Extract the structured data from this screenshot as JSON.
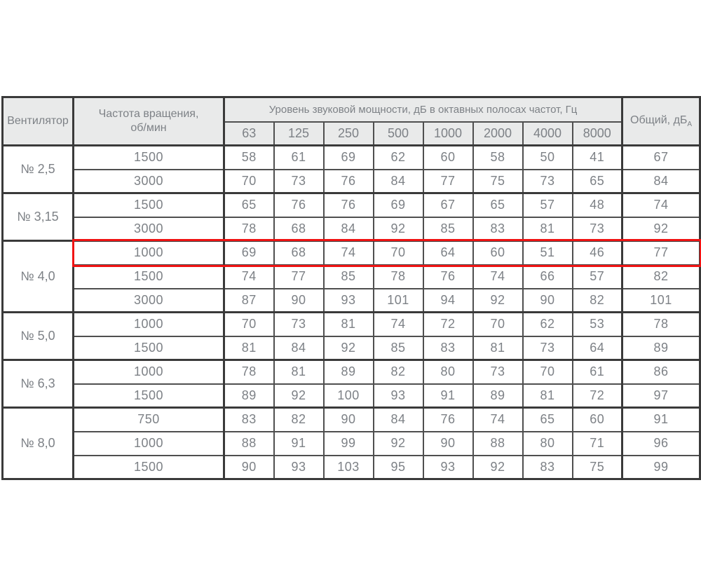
{
  "colors": {
    "highlight_red": "#f01414",
    "header_bg": "#e9eaea",
    "text": "#7d8186",
    "border_major": "#3a3a3a",
    "border_minor": "#4f4f4f"
  },
  "table": {
    "corner_header": "Вентилятор",
    "rpm_header_line1": "Частота вращения,",
    "rpm_header_line2": "об/мин",
    "band_header": "Уровень звуковой мощности, дБ в октавных полосах частот, Гц",
    "freq_columns": [
      "63",
      "125",
      "250",
      "500",
      "1000",
      "2000",
      "4000",
      "8000"
    ],
    "total_header": "Общий, дБ",
    "total_header_subscript": "А",
    "groups": [
      {
        "fan": "№ 2,5",
        "rows": [
          {
            "rpm": "1500",
            "levels": [
              58,
              61,
              69,
              62,
              60,
              58,
              50,
              41
            ],
            "total": 67
          },
          {
            "rpm": "3000",
            "levels": [
              70,
              73,
              76,
              84,
              77,
              75,
              73,
              65
            ],
            "total": 84
          }
        ]
      },
      {
        "fan": "№ 3,15",
        "rows": [
          {
            "rpm": "1500",
            "levels": [
              65,
              76,
              76,
              69,
              67,
              65,
              57,
              48
            ],
            "total": 74
          },
          {
            "rpm": "3000",
            "levels": [
              78,
              68,
              84,
              92,
              85,
              83,
              81,
              73
            ],
            "total": 92
          }
        ]
      },
      {
        "fan": "№ 4,0",
        "rows": [
          {
            "rpm": "1000",
            "levels": [
              69,
              68,
              74,
              70,
              64,
              60,
              51,
              46
            ],
            "total": 77,
            "highlighted": true
          },
          {
            "rpm": "1500",
            "levels": [
              74,
              77,
              85,
              78,
              76,
              74,
              66,
              57
            ],
            "total": 82
          },
          {
            "rpm": "3000",
            "levels": [
              87,
              90,
              93,
              101,
              94,
              92,
              90,
              82
            ],
            "total": 101
          }
        ]
      },
      {
        "fan": "№ 5,0",
        "rows": [
          {
            "rpm": "1000",
            "levels": [
              70,
              73,
              81,
              74,
              72,
              70,
              62,
              53
            ],
            "total": 78
          },
          {
            "rpm": "1500",
            "levels": [
              81,
              84,
              92,
              85,
              83,
              81,
              73,
              64
            ],
            "total": 89
          }
        ]
      },
      {
        "fan": "№ 6,3",
        "rows": [
          {
            "rpm": "1000",
            "levels": [
              78,
              81,
              89,
              82,
              80,
              73,
              70,
              61
            ],
            "total": 86
          },
          {
            "rpm": "1500",
            "levels": [
              89,
              92,
              100,
              93,
              91,
              89,
              81,
              72
            ],
            "total": 97
          }
        ]
      },
      {
        "fan": "№ 8,0",
        "rows": [
          {
            "rpm": "750",
            "levels": [
              83,
              82,
              90,
              84,
              76,
              74,
              65,
              60
            ],
            "total": 91
          },
          {
            "rpm": "1000",
            "levels": [
              88,
              91,
              99,
              92,
              90,
              88,
              80,
              71
            ],
            "total": 96
          },
          {
            "rpm": "1500",
            "levels": [
              90,
              93,
              103,
              95,
              93,
              92,
              83,
              75
            ],
            "total": 99
          }
        ]
      }
    ]
  }
}
